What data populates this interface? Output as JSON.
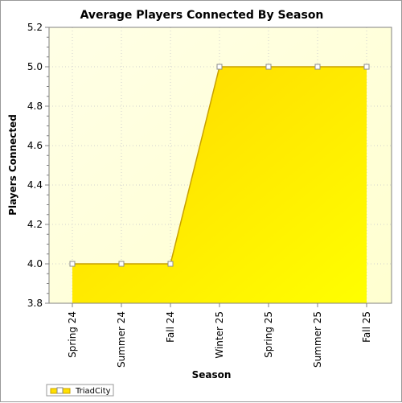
{
  "chart_data": {
    "type": "area",
    "title": "Average Players Connected By Season",
    "xlabel": "Season",
    "ylabel": "Players Connected",
    "categories": [
      "Spring 24",
      "Summer 24",
      "Fall 24",
      "Winter 25",
      "Spring 25",
      "Summer 25",
      "Fall 25"
    ],
    "series": [
      {
        "name": "TriadCity",
        "values": [
          4.0,
          4.0,
          4.0,
          5.0,
          5.0,
          5.0,
          5.0
        ]
      }
    ],
    "ylim": [
      3.8,
      5.2
    ],
    "yticks": [
      "3.8",
      "4.0",
      "4.2",
      "4.4",
      "4.6",
      "4.8",
      "5.0",
      "5.2"
    ],
    "grid": true,
    "legend_position": "bottom-left",
    "colors": {
      "plot_bg_top": "#ffffe8",
      "fill_light": "#ffff00",
      "fill_dark": "#ffd800",
      "line": "#c8a000",
      "grid": "#d0d0d0"
    }
  }
}
